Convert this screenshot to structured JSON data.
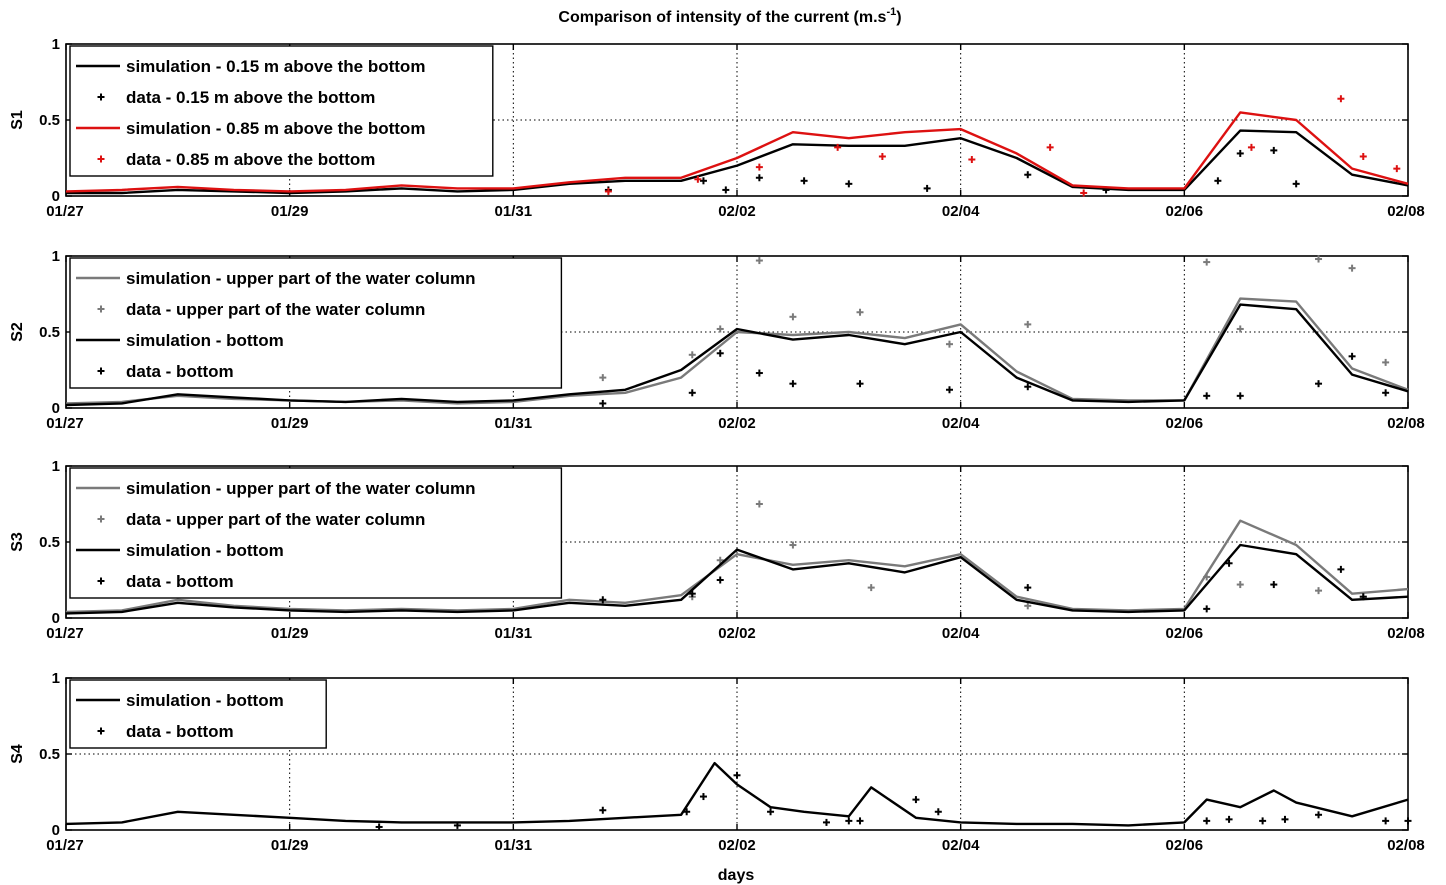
{
  "chart_data": {
    "type": "line",
    "title": "Comparison of intensity of the current (m.s",
    "title_exp": "-1",
    "title_close": ")",
    "xlabel": "days",
    "xlim": [
      "01/27",
      "02/08"
    ],
    "x_ticks": [
      "01/27",
      "01/29",
      "01/31",
      "02/02",
      "02/04",
      "02/06",
      "02/08"
    ],
    "grid": true,
    "colors": {
      "black": "#000000",
      "red": "#dd1111",
      "gray": "#7a7a7a"
    },
    "panels": [
      {
        "id": "S1",
        "ylabel": "S1",
        "ylim": [
          0,
          1
        ],
        "y_ticks": [
          "0",
          "0.5",
          "1"
        ],
        "legend_position": "top-left",
        "series": [
          {
            "name": "simulation - 0.15 m above the bottom",
            "kind": "line",
            "color": "#000000",
            "x": [
              0,
              0.5,
              1,
              1.5,
              2,
              2.5,
              3,
              3.5,
              4,
              4.5,
              5,
              5.5,
              6,
              6.5,
              7,
              7.5,
              8,
              8.5,
              9,
              9.5,
              10,
              10.5,
              11,
              11.5,
              12
            ],
            "y": [
              0.02,
              0.02,
              0.04,
              0.03,
              0.02,
              0.03,
              0.05,
              0.03,
              0.04,
              0.08,
              0.1,
              0.1,
              0.2,
              0.34,
              0.33,
              0.33,
              0.38,
              0.25,
              0.06,
              0.04,
              0.04,
              0.43,
              0.42,
              0.14,
              0.07
            ]
          },
          {
            "name": "data - 0.15 m above the bottom",
            "kind": "points",
            "color": "#000000",
            "x": [
              4.85,
              5.7,
              5.9,
              6.2,
              6.6,
              7,
              7.7,
              8.6,
              9.3,
              10.3,
              10.5,
              10.8,
              11
            ],
            "y": [
              0.04,
              0.1,
              0.04,
              0.12,
              0.1,
              0.08,
              0.05,
              0.14,
              0.04,
              0.1,
              0.28,
              0.3,
              0.08
            ]
          },
          {
            "name": "simulation - 0.85 m above the bottom",
            "kind": "line",
            "color": "#dd1111",
            "x": [
              0,
              0.5,
              1,
              1.5,
              2,
              2.5,
              3,
              3.5,
              4,
              4.5,
              5,
              5.5,
              6,
              6.5,
              7,
              7.5,
              8,
              8.5,
              9,
              9.5,
              10,
              10.5,
              11,
              11.5,
              12
            ],
            "y": [
              0.03,
              0.04,
              0.06,
              0.04,
              0.03,
              0.04,
              0.07,
              0.05,
              0.05,
              0.09,
              0.12,
              0.12,
              0.25,
              0.42,
              0.38,
              0.42,
              0.44,
              0.28,
              0.07,
              0.05,
              0.05,
              0.55,
              0.5,
              0.18,
              0.08
            ]
          },
          {
            "name": "data - 0.85 m above the bottom",
            "kind": "points",
            "color": "#dd1111",
            "x": [
              4.85,
              5.65,
              6.2,
              6.9,
              7.3,
              8.1,
              8.8,
              9.1,
              10.6,
              11.4,
              11.6,
              11.9
            ],
            "y": [
              0.03,
              0.11,
              0.19,
              0.32,
              0.26,
              0.24,
              0.32,
              0.02,
              0.32,
              0.64,
              0.26,
              0.18
            ]
          }
        ]
      },
      {
        "id": "S2",
        "ylabel": "S2",
        "ylim": [
          0,
          1
        ],
        "y_ticks": [
          "0",
          "0.5",
          "1"
        ],
        "legend_position": "top-left",
        "series": [
          {
            "name": "simulation - upper part of the water column",
            "kind": "line",
            "color": "#7a7a7a",
            "x": [
              0,
              0.5,
              1,
              1.5,
              2,
              2.5,
              3,
              3.5,
              4,
              4.5,
              5,
              5.5,
              6,
              6.5,
              7,
              7.5,
              8,
              8.5,
              9,
              9.5,
              10,
              10.5,
              11,
              11.5,
              12
            ],
            "y": [
              0.03,
              0.04,
              0.08,
              0.06,
              0.05,
              0.04,
              0.05,
              0.03,
              0.04,
              0.08,
              0.1,
              0.2,
              0.5,
              0.48,
              0.5,
              0.46,
              0.55,
              0.24,
              0.06,
              0.05,
              0.05,
              0.72,
              0.7,
              0.26,
              0.12
            ]
          },
          {
            "name": "data - upper part of the water column",
            "kind": "points",
            "color": "#7a7a7a",
            "x": [
              4.8,
              5.6,
              5.85,
              6.2,
              6.5,
              7.1,
              7.9,
              8.6,
              10.2,
              10.5,
              11.2,
              11.5,
              11.8
            ],
            "y": [
              0.2,
              0.35,
              0.52,
              0.97,
              0.6,
              0.63,
              0.42,
              0.55,
              0.96,
              0.52,
              0.98,
              0.92,
              0.3
            ]
          },
          {
            "name": "simulation - bottom",
            "kind": "line",
            "color": "#000000",
            "x": [
              0,
              0.5,
              1,
              1.5,
              2,
              2.5,
              3,
              3.5,
              4,
              4.5,
              5,
              5.5,
              6,
              6.5,
              7,
              7.5,
              8,
              8.5,
              9,
              9.5,
              10,
              10.5,
              11,
              11.5,
              12
            ],
            "y": [
              0.02,
              0.03,
              0.09,
              0.07,
              0.05,
              0.04,
              0.06,
              0.04,
              0.05,
              0.09,
              0.12,
              0.25,
              0.52,
              0.45,
              0.48,
              0.42,
              0.5,
              0.2,
              0.05,
              0.04,
              0.05,
              0.68,
              0.65,
              0.22,
              0.11
            ]
          },
          {
            "name": "data - bottom",
            "kind": "points",
            "color": "#000000",
            "x": [
              4.8,
              5.6,
              5.85,
              6.2,
              6.5,
              7.1,
              7.9,
              8.6,
              10.2,
              10.5,
              11.2,
              11.5,
              11.8
            ],
            "y": [
              0.03,
              0.1,
              0.36,
              0.23,
              0.16,
              0.16,
              0.12,
              0.14,
              0.08,
              0.08,
              0.16,
              0.34,
              0.1
            ]
          }
        ]
      },
      {
        "id": "S3",
        "ylabel": "S3",
        "ylim": [
          0,
          1
        ],
        "y_ticks": [
          "0",
          "0.5",
          "1"
        ],
        "legend_position": "top-left",
        "series": [
          {
            "name": "simulation - upper part of the water column",
            "kind": "line",
            "color": "#7a7a7a",
            "x": [
              0,
              0.5,
              1,
              1.5,
              2,
              2.5,
              3,
              3.5,
              4,
              4.5,
              5,
              5.5,
              6,
              6.5,
              7,
              7.5,
              8,
              8.5,
              9,
              9.5,
              10,
              10.5,
              11,
              11.5,
              12
            ],
            "y": [
              0.04,
              0.05,
              0.12,
              0.08,
              0.06,
              0.05,
              0.06,
              0.05,
              0.06,
              0.12,
              0.1,
              0.15,
              0.42,
              0.35,
              0.38,
              0.34,
              0.42,
              0.14,
              0.06,
              0.05,
              0.06,
              0.64,
              0.48,
              0.16,
              0.19
            ]
          },
          {
            "name": "data - upper part of the water column",
            "kind": "points",
            "color": "#7a7a7a",
            "x": [
              5.6,
              5.85,
              6.2,
              6.5,
              7.2,
              8.6,
              10.2,
              10.5,
              11.2,
              11.6
            ],
            "y": [
              0.14,
              0.38,
              0.75,
              0.48,
              0.2,
              0.08,
              0.27,
              0.22,
              0.18,
              0.14
            ]
          },
          {
            "name": "simulation - bottom",
            "kind": "line",
            "color": "#000000",
            "x": [
              0,
              0.5,
              1,
              1.5,
              2,
              2.5,
              3,
              3.5,
              4,
              4.5,
              5,
              5.5,
              6,
              6.5,
              7,
              7.5,
              8,
              8.5,
              9,
              9.5,
              10,
              10.5,
              11,
              11.5,
              12
            ],
            "y": [
              0.03,
              0.04,
              0.1,
              0.07,
              0.05,
              0.04,
              0.05,
              0.04,
              0.05,
              0.1,
              0.08,
              0.12,
              0.45,
              0.32,
              0.36,
              0.3,
              0.4,
              0.12,
              0.05,
              0.04,
              0.05,
              0.48,
              0.42,
              0.12,
              0.14
            ]
          },
          {
            "name": "data - bottom",
            "kind": "points",
            "color": "#000000",
            "x": [
              4.8,
              5.6,
              5.85,
              8.6,
              10.2,
              10.4,
              10.8,
              11.4,
              11.6
            ],
            "y": [
              0.12,
              0.16,
              0.25,
              0.2,
              0.06,
              0.36,
              0.22,
              0.32,
              0.14
            ]
          }
        ]
      },
      {
        "id": "S4",
        "ylabel": "S4",
        "ylim": [
          0,
          1
        ],
        "y_ticks": [
          "0",
          "0.5",
          "1"
        ],
        "legend_position": "top-left",
        "series": [
          {
            "name": "simulation - bottom",
            "kind": "line",
            "color": "#000000",
            "x": [
              0,
              0.5,
              1,
              1.5,
              2,
              2.5,
              3,
              3.5,
              4,
              4.5,
              5,
              5.5,
              5.8,
              6,
              6.3,
              6.6,
              7,
              7.2,
              7.6,
              8,
              8.5,
              9,
              9.5,
              10,
              10.2,
              10.5,
              10.8,
              11,
              11.5,
              12
            ],
            "y": [
              0.04,
              0.05,
              0.12,
              0.1,
              0.08,
              0.06,
              0.05,
              0.05,
              0.05,
              0.06,
              0.08,
              0.1,
              0.44,
              0.3,
              0.15,
              0.12,
              0.09,
              0.28,
              0.08,
              0.05,
              0.04,
              0.04,
              0.03,
              0.05,
              0.2,
              0.15,
              0.26,
              0.18,
              0.09,
              0.2
            ]
          },
          {
            "name": "data - bottom",
            "kind": "points",
            "color": "#000000",
            "x": [
              2.8,
              3.5,
              4.8,
              5.55,
              5.7,
              6,
              6.3,
              6.8,
              7,
              7.1,
              7.6,
              7.8,
              10.2,
              10.4,
              10.7,
              10.9,
              11.2,
              11.8,
              12
            ],
            "y": [
              0.02,
              0.03,
              0.13,
              0.12,
              0.22,
              0.36,
              0.12,
              0.05,
              0.06,
              0.06,
              0.2,
              0.12,
              0.06,
              0.07,
              0.06,
              0.07,
              0.1,
              0.06,
              0.06
            ]
          }
        ]
      }
    ]
  }
}
